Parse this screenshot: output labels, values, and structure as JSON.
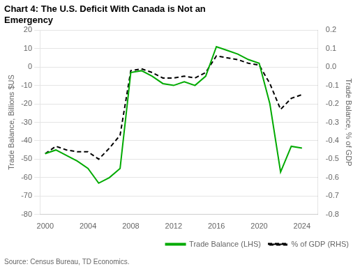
{
  "chart_data": {
    "type": "line",
    "title": [
      "Chart 4: The U.S. Deficit With Canada is Not an",
      "Emergency"
    ],
    "ylabel": "Trade Balance, Billions $US",
    "y2label": "Trade Balance, % of GDP",
    "annotations": [
      "Source: Census Bureau, TD Economics."
    ],
    "x": [
      2000,
      2001,
      2002,
      2003,
      2004,
      2005,
      2006,
      2007,
      2008,
      2009,
      2010,
      2011,
      2012,
      2013,
      2014,
      2015,
      2016,
      2017,
      2018,
      2019,
      2020,
      2021,
      2022,
      2023,
      2024
    ],
    "series": [
      {
        "name": "Trade Balance (LHS)",
        "color": "#00AA00",
        "line_style": "solid",
        "marker": "none",
        "values": [
          -47,
          -45,
          -48,
          -51,
          -55,
          -63,
          -60,
          -55,
          -3,
          -2,
          -5,
          -9,
          -10,
          -8,
          -10,
          -5,
          11,
          9,
          7,
          4,
          2,
          -20,
          -57,
          -43,
          -44
        ]
      },
      {
        "name": "% of GDP (RHS)",
        "color": "#000000",
        "line_style": "dashed",
        "marker": "none",
        "axis": "y2",
        "values": [
          -0.47,
          -0.43,
          -0.45,
          -0.46,
          -0.46,
          -0.5,
          -0.44,
          -0.37,
          -0.02,
          -0.01,
          -0.03,
          -0.06,
          -0.06,
          -0.05,
          -0.06,
          -0.03,
          0.06,
          0.05,
          0.04,
          0.02,
          0.01,
          -0.09,
          -0.23,
          -0.17,
          -0.15
        ]
      }
    ],
    "xlim": [
      1999.5,
      2025.5
    ],
    "xticks": [
      2000,
      2004,
      2008,
      2012,
      2016,
      2020,
      2024
    ],
    "ylim": [
      -80,
      20
    ],
    "yticks": [
      -80,
      -70,
      -60,
      -50,
      -40,
      -30,
      -20,
      -10,
      0,
      10,
      20
    ],
    "y2lim": [
      -0.8,
      0.2
    ],
    "y2ticks": [
      -0.8,
      -0.7,
      -0.6,
      -0.5,
      -0.4,
      -0.3,
      -0.2,
      -0.1,
      {
        "value": 0,
        "label": "0.0"
      },
      0.1,
      0.2
    ],
    "grid": true,
    "legend": "lower right"
  }
}
